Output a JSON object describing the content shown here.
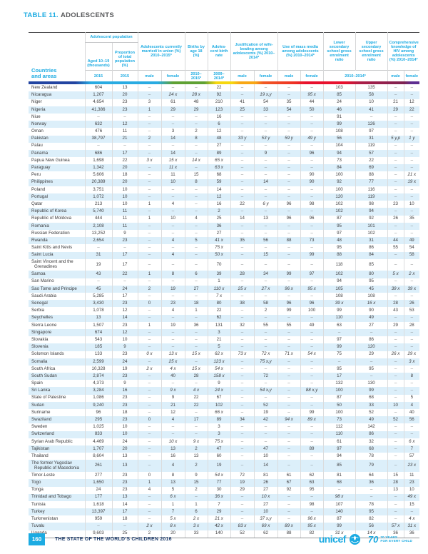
{
  "page": {
    "title_prefix": "TABLE 11.",
    "title": "ADOLESCENTS",
    "footer": {
      "page_number": "160",
      "report_title": "THE STATE OF THE WORLD’S CHILDREN 2016",
      "brand": "unicef",
      "brand_mark": "70",
      "tagline_line1": "70 YEARS",
      "tagline_line2": "FOR EVERY CHILD"
    }
  },
  "colors": {
    "accent_cyan": "#1CABE2",
    "navy_text": "#1F3E6E",
    "stripe_blue": "#DCEFFA",
    "band": [
      "#2244A1",
      "#29ABE2",
      "#5FA133",
      "#F6D70F",
      "#F8A715",
      "#F15A24",
      "#E8112D",
      "#7E2250",
      "#5E2E91"
    ]
  },
  "table": {
    "corner_line1": "Countries",
    "corner_line2": "and areas",
    "groups": {
      "population": {
        "label": "Adolescent population",
        "children": [
          "Aged 10–19 (thousands)",
          "Proportion of total population (%)"
        ]
      },
      "married": {
        "label": "Adolescents currently married/ in union (%) 2010–2015*"
      },
      "births18": {
        "label": "Births by age 18 (%)"
      },
      "birthrate": {
        "label": "Adoles-cent birth rate"
      },
      "wifebeating": {
        "label": "Justification of wife-beating among adolescents (%) 2010–2014*"
      },
      "massmedia": {
        "label": "Use of mass media among adolescents (%) 2010–2014*"
      },
      "lowersec": {
        "label": "Lower secondary school gross enrolment ratio"
      },
      "uppersec": {
        "label": "Upper secondary school gross enrolment ratio"
      },
      "hiv": {
        "label": "Comprehensive knowledge of HIV among adolescents (%) 2010–2014*"
      }
    },
    "subheaders": [
      "2015",
      "2015",
      "male",
      "female",
      "2010– 2015*",
      "2009– 2014*",
      "male",
      "female",
      "male",
      "female",
      "2010–2014*",
      "male",
      "female"
    ],
    "rows": [
      {
        "c": "New Zealand",
        "v": [
          "604",
          "13",
          "–",
          "–",
          "–",
          "22",
          "–",
          "–",
          "–",
          "–",
          "103",
          "135",
          "–",
          "–"
        ]
      },
      {
        "c": "Nicaragua",
        "v": [
          "1,207",
          "20",
          "–",
          "24 x",
          "28 x",
          "92",
          "–",
          "19 x,y",
          "–",
          "95 x",
          "85",
          "58",
          "–",
          "–"
        ]
      },
      {
        "c": "Niger",
        "v": [
          "4,654",
          "23",
          "3",
          "61",
          "48",
          "210",
          "41",
          "54",
          "35",
          "44",
          "24",
          "10",
          "21",
          "12"
        ]
      },
      {
        "c": "Nigeria",
        "v": [
          "41,386",
          "23",
          "1",
          "29",
          "29",
          "123",
          "25",
          "33",
          "54",
          "50",
          "46",
          "41",
          "29",
          "22"
        ]
      },
      {
        "c": "Niue",
        "v": [
          "–",
          "–",
          "–",
          "–",
          "–",
          "16",
          "–",
          "–",
          "–",
          "–",
          "91",
          "–",
          "–",
          "–"
        ]
      },
      {
        "c": "Norway",
        "v": [
          "632",
          "12",
          "–",
          "–",
          "–",
          "6",
          "–",
          "–",
          "–",
          "–",
          "99",
          "126",
          "–",
          "–"
        ]
      },
      {
        "c": "Oman",
        "v": [
          "476",
          "11",
          "–",
          "3",
          "2",
          "12",
          "–",
          "–",
          "–",
          "–",
          "108",
          "97",
          "–",
          "–"
        ]
      },
      {
        "c": "Pakistan",
        "v": [
          "38,797",
          "21",
          "2",
          "14",
          "8",
          "48",
          "33 y",
          "53 y",
          "59 y",
          "49 y",
          "56",
          "31",
          "5 y,p",
          "1 y"
        ]
      },
      {
        "c": "Palau",
        "v": [
          "–",
          "–",
          "–",
          "–",
          "–",
          "27",
          "–",
          "–",
          "–",
          "–",
          "104",
          "119",
          "–",
          "–"
        ]
      },
      {
        "c": "Panama",
        "v": [
          "686",
          "17",
          "–",
          "14",
          "–",
          "89",
          "–",
          "9",
          "–",
          "96",
          "94",
          "57",
          "–",
          "–"
        ]
      },
      {
        "c": "Papua New Guinea",
        "v": [
          "1,698",
          "22",
          "3 x",
          "15 x",
          "14 x",
          "65 x",
          "–",
          "–",
          "–",
          "–",
          "73",
          "22",
          "–",
          "–"
        ]
      },
      {
        "c": "Paraguay",
        "v": [
          "1,342",
          "20",
          "–",
          "11 x",
          "–",
          "63 x",
          "–",
          "–",
          "–",
          "–",
          "84",
          "69",
          "–",
          "–"
        ]
      },
      {
        "c": "Peru",
        "v": [
          "5,606",
          "18",
          "–",
          "11",
          "15",
          "68",
          "–",
          "–",
          "–",
          "90",
          "100",
          "88",
          "–",
          "21 x"
        ]
      },
      {
        "c": "Philippines",
        "v": [
          "20,389",
          "20",
          "–",
          "10",
          "8",
          "59",
          "–",
          "14",
          "–",
          "90",
          "92",
          "77",
          "–",
          "19 x"
        ]
      },
      {
        "c": "Poland",
        "v": [
          "3,751",
          "10",
          "–",
          "–",
          "–",
          "14",
          "–",
          "–",
          "–",
          "–",
          "100",
          "116",
          "–",
          "–"
        ]
      },
      {
        "c": "Portugal",
        "v": [
          "1,072",
          "10",
          "–",
          "–",
          "–",
          "12",
          "–",
          "–",
          "–",
          "–",
          "120",
          "119",
          "–",
          "–"
        ]
      },
      {
        "c": "Qatar",
        "v": [
          "213",
          "10",
          "1",
          "4",
          "–",
          "16",
          "22",
          "6 y",
          "96",
          "98",
          "102",
          "98",
          "23",
          "10"
        ]
      },
      {
        "c": "Republic of Korea",
        "v": [
          "5,740",
          "11",
          "–",
          "–",
          "–",
          "2",
          "–",
          "–",
          "–",
          "–",
          "102",
          "94",
          "–",
          "–"
        ]
      },
      {
        "c": "Republic of Moldova",
        "v": [
          "444",
          "11",
          "1",
          "10",
          "4",
          "25",
          "14",
          "13",
          "96",
          "96",
          "87",
          "92",
          "26",
          "35"
        ]
      },
      {
        "c": "Romania",
        "v": [
          "2,108",
          "11",
          "–",
          "–",
          "–",
          "36",
          "–",
          "–",
          "–",
          "–",
          "95",
          "101",
          "–",
          "–"
        ]
      },
      {
        "c": "Russian Federation",
        "v": [
          "13,252",
          "9",
          "–",
          "–",
          "–",
          "27",
          "–",
          "–",
          "–",
          "–",
          "97",
          "102",
          "–",
          "–"
        ]
      },
      {
        "c": "Rwanda",
        "v": [
          "2,654",
          "23",
          "–",
          "4",
          "5",
          "41 x",
          "35",
          "56",
          "88",
          "73",
          "48",
          "31",
          "44",
          "49"
        ]
      },
      {
        "c": "Saint Kitts and Nevis",
        "v": [
          "–",
          "–",
          "–",
          "–",
          "–",
          "75 x",
          "–",
          "–",
          "–",
          "–",
          "95",
          "86",
          "55",
          "54"
        ]
      },
      {
        "c": "Saint Lucia",
        "v": [
          "31",
          "17",
          "–",
          "4",
          "–",
          "50 x",
          "–",
          "15",
          "–",
          "99",
          "88",
          "84",
          "–",
          "58"
        ]
      },
      {
        "c": "Saint Vincent and the Grenadines",
        "v": [
          "19",
          "17",
          "–",
          "–",
          "–",
          "70",
          "–",
          "–",
          "–",
          "–",
          "118",
          "85",
          "–",
          "–"
        ]
      },
      {
        "c": "Samoa",
        "v": [
          "43",
          "22",
          "1",
          "8",
          "6",
          "39",
          "28",
          "34",
          "99",
          "97",
          "102",
          "80",
          "5 x",
          "2 x"
        ]
      },
      {
        "c": "San Marino",
        "v": [
          "–",
          "–",
          "–",
          "–",
          "–",
          "1",
          "–",
          "–",
          "–",
          "–",
          "94",
          "95",
          "–",
          "–"
        ]
      },
      {
        "c": "Sao Tome and Principe",
        "v": [
          "45",
          "24",
          "2",
          "19",
          "27",
          "110 x",
          "25 x",
          "27 x",
          "96 x",
          "95 x",
          "105",
          "45",
          "39 x",
          "39 x"
        ]
      },
      {
        "c": "Saudi Arabia",
        "v": [
          "5,285",
          "17",
          "–",
          "–",
          "–",
          "7 x",
          "–",
          "–",
          "–",
          "–",
          "108",
          "108",
          "–",
          "–"
        ]
      },
      {
        "c": "Senegal",
        "v": [
          "3,430",
          "23",
          "0",
          "23",
          "18",
          "80",
          "38",
          "58",
          "96",
          "96",
          "39 x",
          "16 x",
          "28",
          "26"
        ]
      },
      {
        "c": "Serbia",
        "v": [
          "1,078",
          "12",
          "–",
          "4",
          "1",
          "22",
          "–",
          "2",
          "99",
          "100",
          "99",
          "90",
          "43",
          "53"
        ]
      },
      {
        "c": "Seychelles",
        "v": [
          "13",
          "14",
          "–",
          "–",
          "–",
          "62",
          "–",
          "–",
          "–",
          "–",
          "110",
          "49",
          "–",
          "–"
        ]
      },
      {
        "c": "Sierra Leone",
        "v": [
          "1,507",
          "23",
          "1",
          "19",
          "36",
          "131",
          "32",
          "55",
          "55",
          "49",
          "63",
          "27",
          "29",
          "28"
        ]
      },
      {
        "c": "Singapore",
        "v": [
          "674",
          "12",
          "–",
          "–",
          "–",
          "3",
          "–",
          "–",
          "–",
          "–",
          "–",
          "–",
          "–",
          "–"
        ]
      },
      {
        "c": "Slovakia",
        "v": [
          "543",
          "10",
          "–",
          "–",
          "–",
          "21",
          "–",
          "–",
          "–",
          "–",
          "97",
          "86",
          "–",
          "–"
        ]
      },
      {
        "c": "Slovenia",
        "v": [
          "185",
          "9",
          "–",
          "–",
          "–",
          "5",
          "–",
          "–",
          "–",
          "–",
          "99",
          "120",
          "–",
          "–"
        ]
      },
      {
        "c": "Solomon Islands",
        "v": [
          "133",
          "23",
          "0 x",
          "13 x",
          "15 x",
          "62 x",
          "73 x",
          "72 x",
          "71 x",
          "54 x",
          "75",
          "29",
          "26 x",
          "29 x"
        ]
      },
      {
        "c": "Somalia",
        "v": [
          "2,599",
          "24",
          "–",
          "25 x",
          "–",
          "123 x",
          "–",
          "75 x,y",
          "–",
          "–",
          "–",
          "–",
          "–",
          "3 x"
        ]
      },
      {
        "c": "South Africa",
        "v": [
          "10,328",
          "19",
          "2 x",
          "4 x",
          "15 x",
          "54 x",
          "–",
          "–",
          "–",
          "–",
          "95",
          "95",
          "–",
          "–"
        ]
      },
      {
        "c": "South Sudan",
        "v": [
          "2,874",
          "23",
          "–",
          "40",
          "28",
          "158 x",
          "–",
          "72",
          "–",
          "–",
          "17",
          "–",
          "–",
          "8"
        ]
      },
      {
        "c": "Spain",
        "v": [
          "4,373",
          "9",
          "–",
          "–",
          "–",
          "9",
          "–",
          "–",
          "–",
          "–",
          "132",
          "130",
          "–",
          "–"
        ]
      },
      {
        "c": "Sri Lanka",
        "v": [
          "3,284",
          "16",
          "–",
          "9 x",
          "4 x",
          "24 x",
          "–",
          "54 x,y",
          "–",
          "88 x,y",
          "100",
          "99",
          "–",
          "–"
        ]
      },
      {
        "c": "State of Palestine",
        "v": [
          "1,086",
          "23",
          "–",
          "9",
          "22",
          "67",
          "–",
          "–",
          "–",
          "–",
          "87",
          "68",
          "–",
          "5"
        ]
      },
      {
        "c": "Sudan",
        "v": [
          "9,240",
          "23",
          "–",
          "21",
          "22",
          "102",
          "–",
          "52",
          "–",
          "–",
          "50",
          "33",
          "10",
          "4"
        ]
      },
      {
        "c": "Suriname",
        "v": [
          "96",
          "18",
          "–",
          "12",
          "–",
          "66 x",
          "–",
          "19",
          "–",
          "99",
          "100",
          "52",
          "–",
          "40"
        ]
      },
      {
        "c": "Swaziland",
        "v": [
          "295",
          "23",
          "0",
          "4",
          "17",
          "89",
          "34",
          "42",
          "94 x",
          "89 x",
          "73",
          "49",
          "52",
          "56"
        ]
      },
      {
        "c": "Sweden",
        "v": [
          "1,025",
          "10",
          "–",
          "–",
          "–",
          "3",
          "–",
          "–",
          "–",
          "–",
          "112",
          "142",
          "–",
          "–"
        ]
      },
      {
        "c": "Switzerland",
        "v": [
          "833",
          "10",
          "–",
          "–",
          "–",
          "3",
          "–",
          "–",
          "–",
          "–",
          "110",
          "86",
          "–",
          "–"
        ]
      },
      {
        "c": "Syrian Arab Republic",
        "v": [
          "4,469",
          "24",
          "–",
          "10 x",
          "9 x",
          "75 x",
          "–",
          "–",
          "–",
          "–",
          "61",
          "32",
          "–",
          "6 x"
        ]
      },
      {
        "c": "Tajikistan",
        "v": [
          "1,707",
          "20",
          "–",
          "13",
          "2",
          "47",
          "–",
          "47",
          "–",
          "89",
          "97",
          "68",
          "–",
          "7"
        ]
      },
      {
        "c": "Thailand",
        "v": [
          "8,604",
          "13",
          "–",
          "16",
          "13",
          "60",
          "–",
          "10",
          "–",
          "–",
          "94",
          "78",
          "–",
          "57"
        ]
      },
      {
        "c": "The former Yugoslav Republic of Macedonia",
        "v": [
          "261",
          "13",
          "–",
          "4",
          "2",
          "19",
          "–",
          "14",
          "–",
          "–",
          "85",
          "79",
          "–",
          "23 x"
        ]
      },
      {
        "c": "Timor-Leste",
        "v": [
          "277",
          "23",
          "0",
          "8",
          "9",
          "54 x",
          "72",
          "81",
          "61",
          "62",
          "81",
          "64",
          "15",
          "11"
        ]
      },
      {
        "c": "Togo",
        "v": [
          "1,650",
          "23",
          "1",
          "13",
          "15",
          "77",
          "19",
          "26",
          "67",
          "63",
          "68",
          "36",
          "28",
          "23"
        ]
      },
      {
        "c": "Tonga",
        "v": [
          "24",
          "23",
          "4",
          "5",
          "2",
          "30",
          "29",
          "27",
          "92",
          "95",
          "–",
          "–",
          "13",
          "10"
        ]
      },
      {
        "c": "Trinidad and Tobago",
        "v": [
          "177",
          "13",
          "–",
          "6 x",
          "–",
          "36 x",
          "–",
          "10 x",
          "–",
          "–",
          "98 x",
          "–",
          "–",
          "49 x"
        ]
      },
      {
        "c": "Tunisia",
        "v": [
          "1,618",
          "14",
          "–",
          "1",
          "1",
          "7",
          "–",
          "27",
          "–",
          "98",
          "107",
          "78",
          "–",
          "15"
        ]
      },
      {
        "c": "Turkey",
        "v": [
          "13,397",
          "17",
          "–",
          "7",
          "6",
          "29",
          "–",
          "10",
          "–",
          "–",
          "140",
          "95",
          "–",
          "–"
        ]
      },
      {
        "c": "Turkmenistan",
        "v": [
          "959",
          "18",
          "–",
          "5 x",
          "2 x",
          "21 x",
          "–",
          "37 x,y",
          "–",
          "96 x",
          "87",
          "82",
          "–",
          "4 x"
        ]
      },
      {
        "c": "Tuvalu",
        "v": [
          "–",
          "–",
          "2 x",
          "8 x",
          "3 x",
          "42 x",
          "83 x",
          "69 x",
          "89 x",
          "95 x",
          "99",
          "56",
          "57 x",
          "31 x"
        ]
      },
      {
        "c": "Uganda",
        "v": [
          "9,603",
          "25",
          "2",
          "20",
          "33",
          "140",
          "52",
          "62",
          "88",
          "82",
          "31 x",
          "14 x",
          "36",
          "36"
        ]
      }
    ]
  }
}
